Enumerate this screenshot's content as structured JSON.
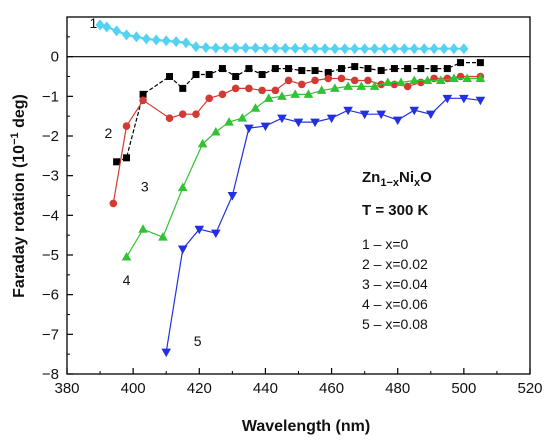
{
  "chart_data": {
    "type": "line",
    "xlabel": "Wavelength (nm)",
    "ylabel": "Faraday rotation (10",
    "ylabel_sup": "−1",
    "ylabel_tail": " deg)",
    "xlim": [
      380,
      520
    ],
    "ylim": [
      -8,
      1
    ],
    "x_ticks": [
      380,
      400,
      420,
      440,
      460,
      480,
      500,
      520
    ],
    "x_tick_labels": [
      "380",
      "400",
      "420",
      "440",
      "460",
      "480",
      "500",
      "520"
    ],
    "y_ticks": [
      -8,
      -7,
      -6,
      -5,
      -4,
      -3,
      -2,
      -1,
      0
    ],
    "y_tick_labels": [
      "−8",
      "−7",
      "−6",
      "−5",
      "−4",
      "−3",
      "−2",
      "−1",
      "0"
    ],
    "zero_line": true,
    "compound": {
      "base": "Zn",
      "sub1": "1−x",
      "mid": "Ni",
      "sub2": "x",
      "tail": "O"
    },
    "temperature": "T = 300 K",
    "legend": [
      "1 – x=0",
      "2 – x=0.02",
      "3 – x=0.04",
      "4 – x=0.06",
      "5 – x=0.08"
    ],
    "series": [
      {
        "label": "1",
        "color": "#55d2f2",
        "marker": "diamond",
        "label_at": [
          388,
          0.72
        ],
        "x": [
          390,
          392,
          395,
          398,
          401,
          404,
          407,
          410,
          413,
          416,
          419,
          422,
          425,
          428,
          431,
          434,
          437,
          440,
          443,
          446,
          449,
          452,
          455,
          458,
          461,
          464,
          467,
          470,
          473,
          476,
          479,
          482,
          485,
          488,
          491,
          494,
          497,
          500
        ],
        "y": [
          0.8,
          0.75,
          0.65,
          0.55,
          0.5,
          0.45,
          0.42,
          0.4,
          0.38,
          0.35,
          0.25,
          0.23,
          0.22,
          0.22,
          0.22,
          0.22,
          0.22,
          0.21,
          0.21,
          0.21,
          0.21,
          0.21,
          0.2,
          0.2,
          0.2,
          0.2,
          0.2,
          0.2,
          0.2,
          0.2,
          0.2,
          0.2,
          0.2,
          0.2,
          0.2,
          0.2,
          0.2,
          0.2
        ]
      },
      {
        "label": "2",
        "color": "#000000",
        "marker": "square",
        "label_at": [
          392.5,
          -2.05
        ],
        "x": [
          395,
          398,
          403,
          411,
          415,
          419,
          423,
          427,
          431,
          435,
          439,
          443,
          447,
          451,
          455,
          459,
          463,
          467,
          471,
          475,
          479,
          483,
          487,
          491,
          495,
          499,
          505
        ],
        "y": [
          -2.65,
          -2.55,
          -0.95,
          -0.5,
          -0.8,
          -0.45,
          -0.45,
          -0.3,
          -0.5,
          -0.3,
          -0.45,
          -0.3,
          -0.3,
          -0.35,
          -0.35,
          -0.4,
          -0.3,
          -0.25,
          -0.3,
          -0.35,
          -0.3,
          -0.3,
          -0.3,
          -0.3,
          -0.3,
          -0.15,
          -0.15
        ]
      },
      {
        "label": "3",
        "color": "#d23a33",
        "marker": "circle",
        "label_at": [
          403.5,
          -3.4
        ],
        "x": [
          394,
          398,
          403,
          411,
          415,
          419,
          423,
          427,
          431,
          435,
          439,
          443,
          447,
          451,
          455,
          459,
          463,
          467,
          471,
          475,
          479,
          483,
          487,
          491,
          495,
          499,
          505
        ],
        "y": [
          -3.7,
          -1.75,
          -1.1,
          -1.55,
          -1.45,
          -1.45,
          -1.05,
          -0.95,
          -0.8,
          -0.8,
          -0.85,
          -0.85,
          -0.6,
          -0.7,
          -0.6,
          -0.55,
          -0.55,
          -0.6,
          -0.6,
          -0.7,
          -0.7,
          -0.75,
          -0.65,
          -0.55,
          -0.55,
          -0.5,
          -0.5
        ]
      },
      {
        "label": "4",
        "color": "#33c233",
        "marker": "triangle",
        "label_at": [
          398,
          -5.75
        ],
        "x": [
          398,
          403,
          409,
          415,
          421,
          425,
          429,
          433,
          437,
          441,
          445,
          449,
          453,
          457,
          461,
          465,
          469,
          473,
          477,
          481,
          485,
          489,
          493,
          497,
          501,
          505
        ],
        "y": [
          -5.05,
          -4.35,
          -4.55,
          -3.3,
          -2.2,
          -1.9,
          -1.65,
          -1.55,
          -1.3,
          -1.05,
          -1.0,
          -0.95,
          -0.95,
          -0.85,
          -0.8,
          -0.75,
          -0.75,
          -0.75,
          -0.65,
          -0.65,
          -0.6,
          -0.6,
          -0.6,
          -0.55,
          -0.55,
          -0.55
        ]
      },
      {
        "label": "5",
        "color": "#2230e0",
        "marker": "triangle-down",
        "label_at": [
          419.5,
          -7.3
        ],
        "x": [
          410,
          415,
          420,
          425,
          430,
          435,
          440,
          445,
          450,
          455,
          460,
          465,
          470,
          475,
          480,
          485,
          490,
          495,
          500,
          505
        ],
        "y": [
          -7.45,
          -4.85,
          -4.35,
          -4.45,
          -3.5,
          -1.8,
          -1.75,
          -1.55,
          -1.65,
          -1.65,
          -1.55,
          -1.35,
          -1.45,
          -1.45,
          -1.6,
          -1.35,
          -1.45,
          -1.05,
          -1.05,
          -1.1
        ]
      }
    ]
  }
}
